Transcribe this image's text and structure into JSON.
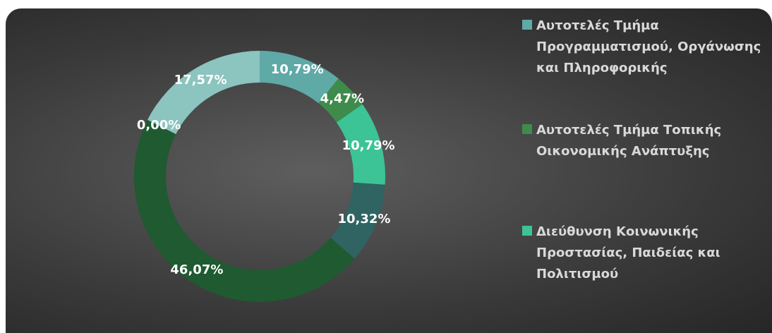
{
  "chart_data": {
    "type": "donut",
    "categories": [
      "Αυτοτελές Τμήμα Προγραμματισμού, Οργάνωσης και Πληροφορικής",
      "Αυτοτελές Τμήμα Τοπικής Οικονομικής Ανάπτυξης",
      "Διεύθυνση Κοινωνικής Προστασίας, Παιδείας και Πολιτισμού",
      null,
      null,
      null,
      null
    ],
    "values": [
      10.79,
      4.47,
      10.79,
      10.32,
      46.07,
      0.0,
      17.57
    ],
    "value_labels": [
      "10,79%",
      "4,47%",
      "10,79%",
      "10,32%",
      "46,07%",
      "0,00%",
      "17,57%"
    ],
    "colors": [
      "#5fa9a6",
      "#3e8b4b",
      "#3cc496",
      "#2f6462",
      "#1f5a31",
      "#4a5a4e",
      "#8cc4bf"
    ]
  }
}
